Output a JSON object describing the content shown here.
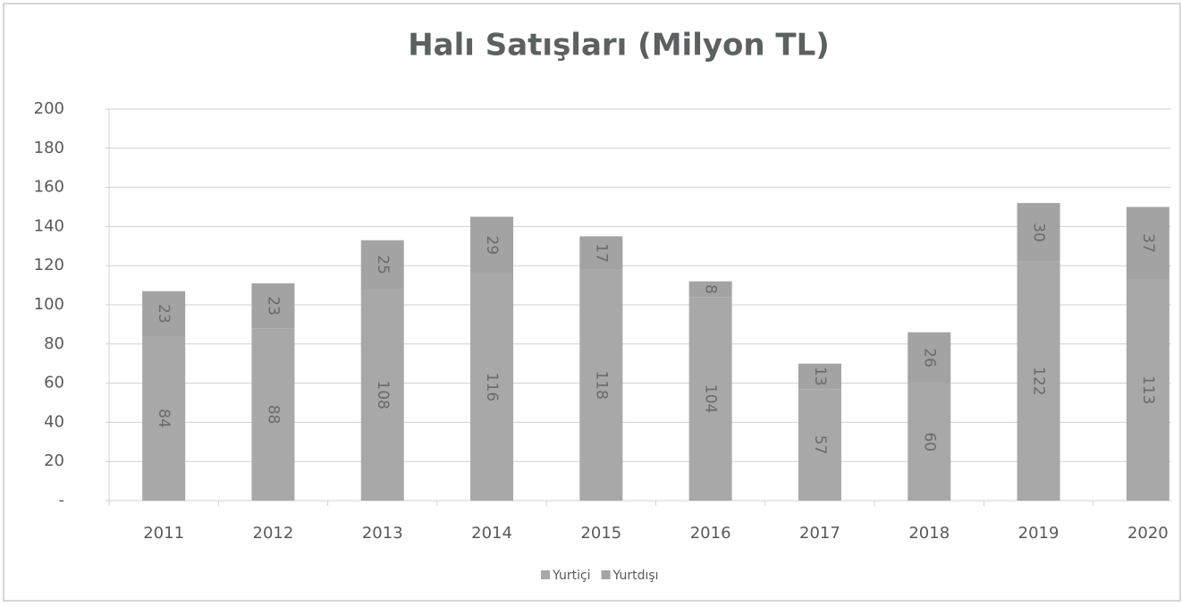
{
  "chart_data": {
    "type": "stacked_bar",
    "title": "Halı Satışları (Milyon TL)",
    "categories": [
      "2011",
      "2012",
      "2013",
      "2014",
      "2015",
      "2016",
      "2017",
      "2018",
      "2019",
      "2020"
    ],
    "series": [
      {
        "name": "Yurtiçi",
        "color": "#a8a8a8",
        "values": [
          84,
          88,
          108,
          116,
          118,
          104,
          57,
          60,
          122,
          113
        ]
      },
      {
        "name": "Yurtdışı",
        "color": "#a3a3a3",
        "values": [
          23,
          23,
          25,
          29,
          17,
          8,
          13,
          26,
          30,
          37
        ]
      }
    ],
    "ylim": [
      0,
      200
    ],
    "yticks": [
      {
        "value": 0,
        "label": "-"
      },
      20,
      40,
      60,
      80,
      100,
      120,
      140,
      160,
      180,
      200
    ],
    "grid": true,
    "legend": "bottom"
  }
}
